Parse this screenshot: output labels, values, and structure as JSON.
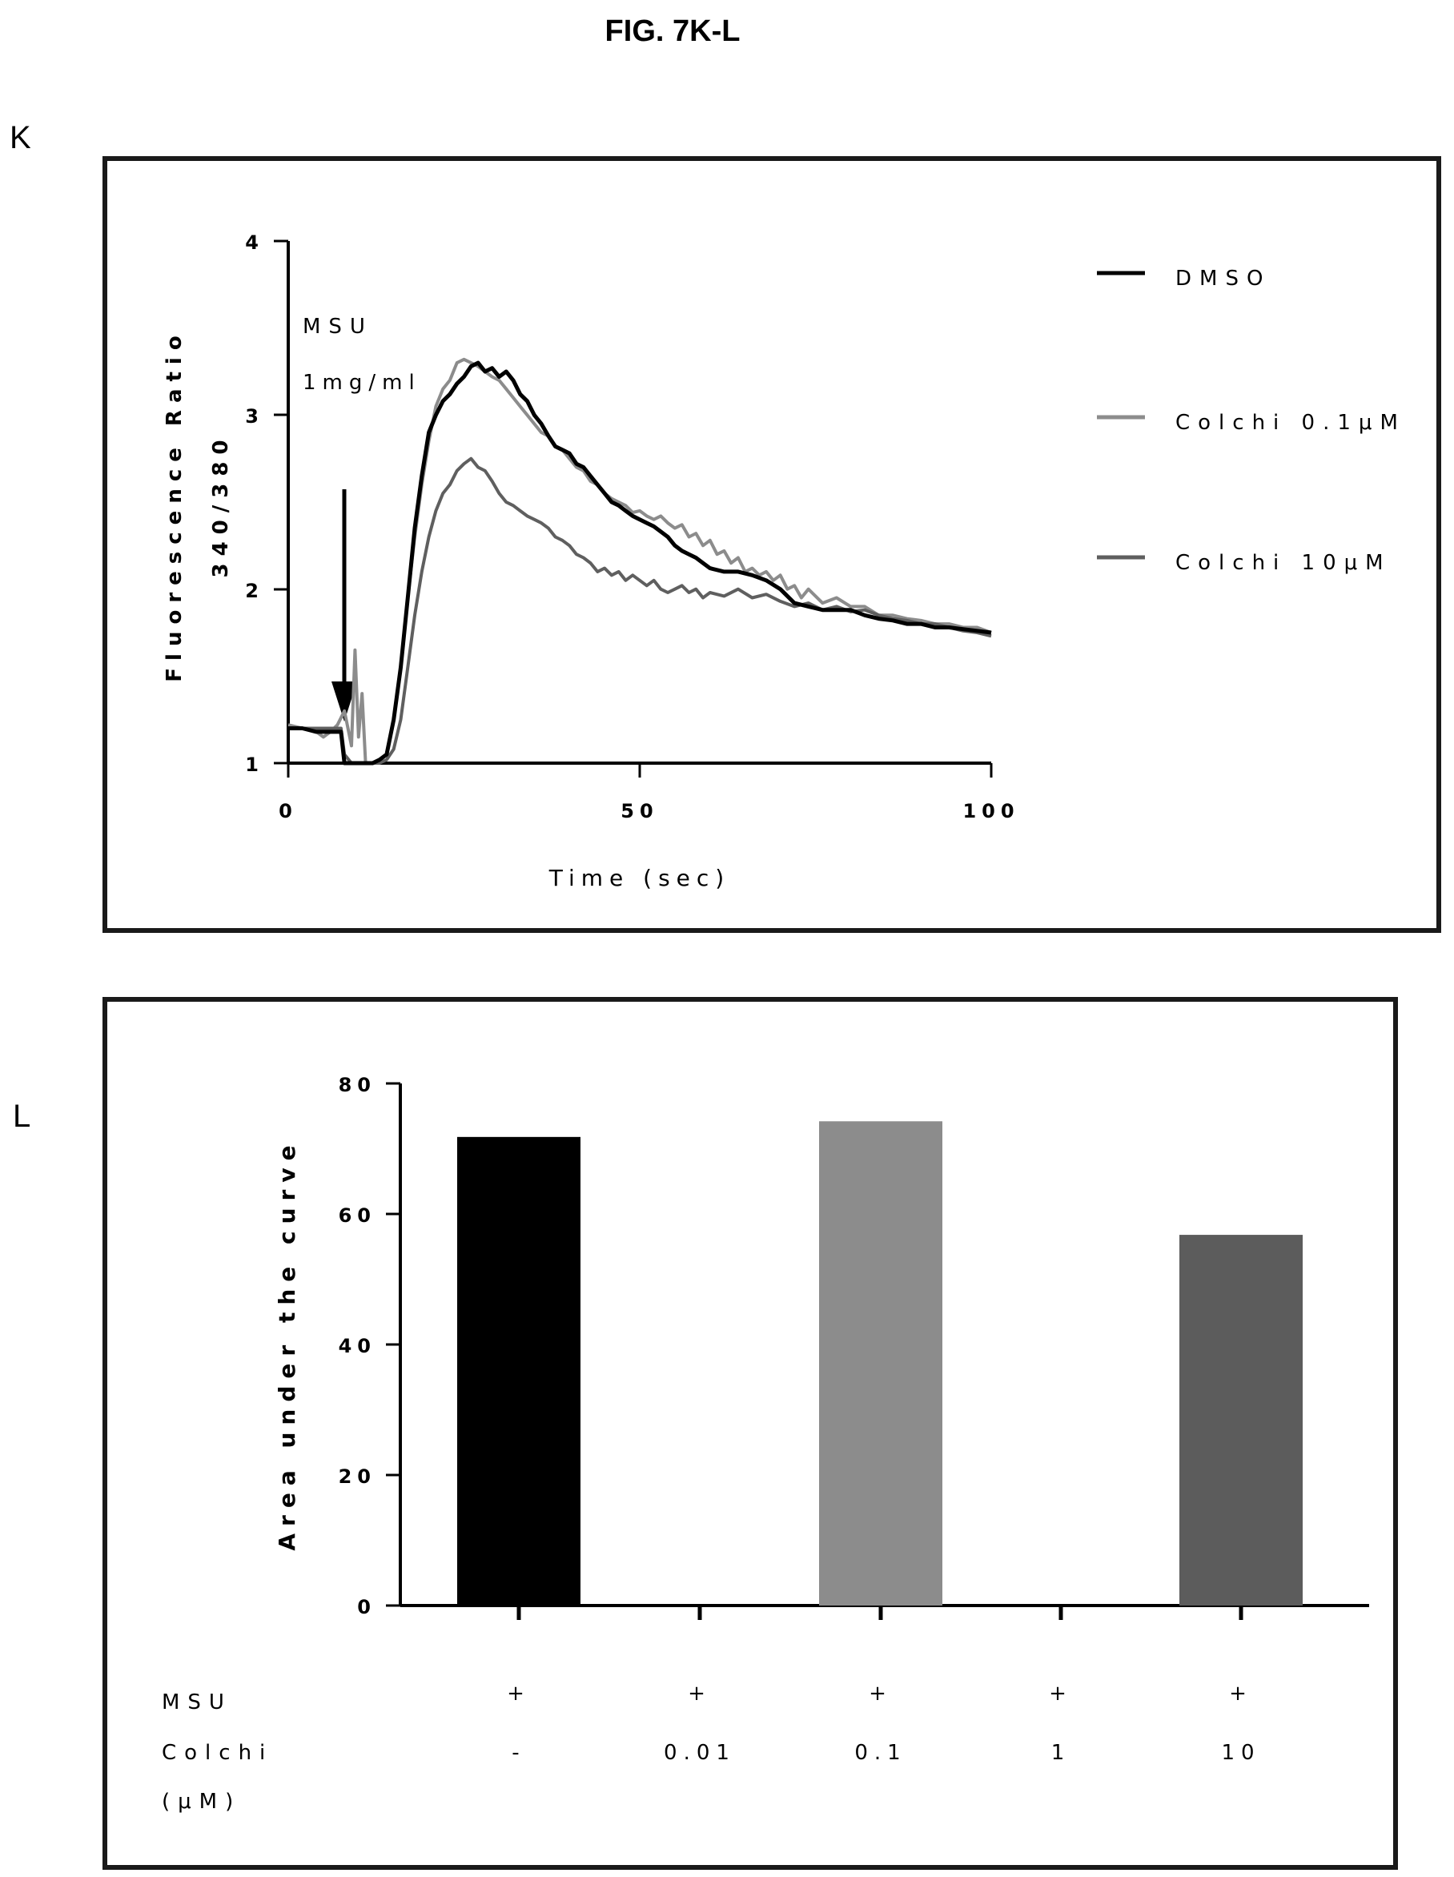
{
  "figure": {
    "title": "FIG. 7K-L"
  },
  "panels": {
    "k_label": "K",
    "l_label": "L"
  },
  "chart_data": [
    {
      "type": "line",
      "panel": "K",
      "xlabel": "Time (sec)",
      "ylabel": "Fluorescence Ratio",
      "ylabel2": "340/380",
      "xlim": [
        0,
        100
      ],
      "ylim": [
        1,
        4
      ],
      "x_ticks": [
        "0",
        "50",
        "100"
      ],
      "y_ticks": [
        "1",
        "2",
        "3",
        "4"
      ],
      "annotation": {
        "line1": "MSU",
        "line2": "1mg/ml",
        "arrow_at_x": 8
      },
      "legend_position": "right",
      "series": [
        {
          "name": "DMSO",
          "color": "#000000",
          "x": [
            0,
            2,
            4,
            6,
            7.5,
            8,
            9,
            10,
            11,
            12,
            13,
            14,
            15,
            16,
            17,
            18,
            19,
            20,
            21,
            22,
            23,
            24,
            25,
            26,
            27,
            28,
            29,
            30,
            31,
            32,
            33,
            34,
            35,
            36,
            37,
            38,
            39,
            40,
            41,
            42,
            43,
            44,
            45,
            46,
            47,
            48,
            49,
            50,
            51,
            52,
            53,
            54,
            55,
            56,
            57,
            58,
            59,
            60,
            62,
            64,
            66,
            68,
            70,
            72,
            74,
            76,
            78,
            80,
            82,
            84,
            86,
            88,
            90,
            92,
            94,
            96,
            98,
            100
          ],
          "y": [
            1.2,
            1.2,
            1.18,
            1.18,
            1.18,
            1.0,
            1.0,
            1.0,
            1.0,
            1.0,
            1.02,
            1.05,
            1.25,
            1.55,
            1.95,
            2.35,
            2.65,
            2.9,
            3.0,
            3.08,
            3.12,
            3.18,
            3.22,
            3.28,
            3.3,
            3.25,
            3.27,
            3.22,
            3.25,
            3.2,
            3.12,
            3.08,
            3.0,
            2.95,
            2.88,
            2.82,
            2.8,
            2.78,
            2.72,
            2.7,
            2.65,
            2.6,
            2.55,
            2.5,
            2.48,
            2.45,
            2.42,
            2.4,
            2.38,
            2.36,
            2.33,
            2.3,
            2.25,
            2.22,
            2.2,
            2.18,
            2.15,
            2.12,
            2.1,
            2.1,
            2.08,
            2.05,
            2.0,
            1.92,
            1.9,
            1.88,
            1.88,
            1.88,
            1.85,
            1.83,
            1.82,
            1.8,
            1.8,
            1.78,
            1.78,
            1.77,
            1.76,
            1.75
          ]
        },
        {
          "name": "Colchi 0.1μM",
          "color": "#8c8c8c",
          "x": [
            0,
            2,
            4,
            5,
            6,
            7,
            8,
            9,
            9.5,
            10,
            10.5,
            11,
            12,
            13,
            14,
            15,
            16,
            17,
            18,
            19,
            20,
            21,
            22,
            23,
            24,
            25,
            26,
            27,
            28,
            29,
            30,
            31,
            32,
            33,
            34,
            35,
            36,
            37,
            38,
            39,
            40,
            41,
            42,
            43,
            44,
            45,
            46,
            47,
            48,
            49,
            50,
            51,
            52,
            53,
            54,
            55,
            56,
            57,
            58,
            59,
            60,
            61,
            62,
            63,
            64,
            65,
            66,
            67,
            68,
            69,
            70,
            71,
            72,
            73,
            74,
            76,
            78,
            80,
            82,
            84,
            86,
            88,
            90,
            92,
            94,
            96,
            98,
            100
          ],
          "y": [
            1.22,
            1.2,
            1.18,
            1.15,
            1.18,
            1.22,
            1.3,
            1.1,
            1.65,
            1.15,
            1.4,
            1.0,
            1.0,
            1.02,
            1.05,
            1.25,
            1.55,
            1.95,
            2.3,
            2.6,
            2.85,
            3.05,
            3.15,
            3.2,
            3.3,
            3.32,
            3.3,
            3.28,
            3.25,
            3.22,
            3.2,
            3.15,
            3.1,
            3.05,
            3.0,
            2.95,
            2.9,
            2.88,
            2.82,
            2.8,
            2.75,
            2.7,
            2.68,
            2.62,
            2.6,
            2.55,
            2.52,
            2.5,
            2.48,
            2.44,
            2.45,
            2.42,
            2.4,
            2.42,
            2.38,
            2.35,
            2.37,
            2.3,
            2.32,
            2.25,
            2.28,
            2.2,
            2.22,
            2.15,
            2.18,
            2.1,
            2.12,
            2.08,
            2.1,
            2.05,
            2.08,
            2.0,
            2.02,
            1.95,
            2.0,
            1.92,
            1.95,
            1.9,
            1.9,
            1.85,
            1.85,
            1.83,
            1.82,
            1.8,
            1.8,
            1.78,
            1.78,
            1.75
          ]
        },
        {
          "name": "Colchi 10μM",
          "color": "#5f5f5f",
          "x": [
            0,
            2,
            4,
            6,
            7.5,
            8,
            9,
            10,
            11,
            12,
            13,
            14,
            15,
            16,
            17,
            18,
            19,
            20,
            21,
            22,
            23,
            24,
            25,
            26,
            27,
            28,
            29,
            30,
            31,
            32,
            33,
            34,
            35,
            36,
            37,
            38,
            39,
            40,
            41,
            42,
            43,
            44,
            45,
            46,
            47,
            48,
            49,
            50,
            51,
            52,
            53,
            54,
            55,
            56,
            57,
            58,
            59,
            60,
            62,
            64,
            66,
            68,
            70,
            72,
            74,
            76,
            78,
            80,
            82,
            84,
            86,
            88,
            90,
            92,
            94,
            96,
            98,
            100
          ],
          "y": [
            1.2,
            1.2,
            1.2,
            1.2,
            1.2,
            1.05,
            1.0,
            1.0,
            1.0,
            1.0,
            1.0,
            1.02,
            1.08,
            1.25,
            1.55,
            1.85,
            2.1,
            2.3,
            2.45,
            2.55,
            2.6,
            2.68,
            2.72,
            2.75,
            2.7,
            2.68,
            2.62,
            2.55,
            2.5,
            2.48,
            2.45,
            2.42,
            2.4,
            2.38,
            2.35,
            2.3,
            2.28,
            2.25,
            2.2,
            2.18,
            2.15,
            2.1,
            2.12,
            2.08,
            2.1,
            2.05,
            2.08,
            2.05,
            2.02,
            2.05,
            2.0,
            1.98,
            2.0,
            2.02,
            1.98,
            2.0,
            1.95,
            1.98,
            1.96,
            2.0,
            1.95,
            1.97,
            1.93,
            1.9,
            1.92,
            1.88,
            1.9,
            1.87,
            1.88,
            1.85,
            1.83,
            1.82,
            1.8,
            1.8,
            1.78,
            1.76,
            1.75,
            1.73
          ]
        }
      ]
    },
    {
      "type": "bar",
      "panel": "L",
      "ylabel": "Area under the curve",
      "ylim": [
        0,
        80
      ],
      "y_ticks": [
        "0",
        "20",
        "40",
        "60",
        "80"
      ],
      "categories": [
        "-",
        "0.01",
        "0.1",
        "1",
        "10"
      ],
      "values": [
        71.8,
        0,
        74.2,
        0,
        56.8
      ],
      "bar_colors": [
        "#000000",
        "#ffffff",
        "#8c8c8c",
        "#ffffff",
        "#5c5c5c"
      ],
      "row_labels": {
        "msu": "MSU",
        "colchi": "Colchi",
        "unit": "(μM)"
      },
      "msu_row": [
        "+",
        "+",
        "+",
        "+",
        "+"
      ],
      "colchi_row": [
        "-",
        "0.01",
        "0.1",
        "1",
        "10"
      ]
    }
  ]
}
